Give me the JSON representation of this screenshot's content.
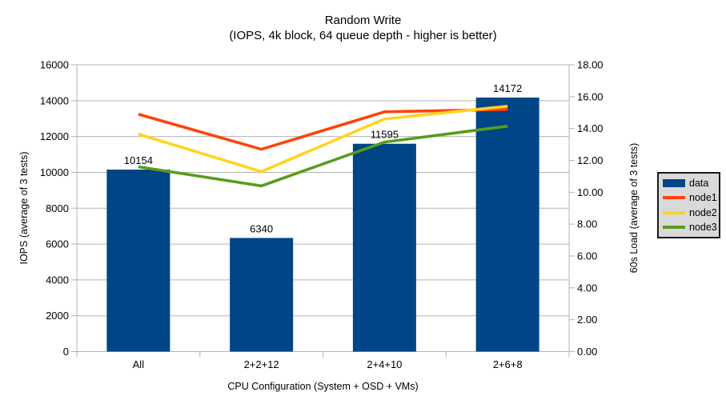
{
  "title": "Random Write",
  "subtitle": "(IOPS, 4k block, 64 queue depth - higher is better)",
  "chart_data": {
    "type": "bar+line",
    "categories": [
      "All",
      "2+2+12",
      "2+4+10",
      "2+6+8"
    ],
    "xlabel": "CPU Configuration (System + OSD + VMs)",
    "ylabel_left": "IOPS (average of 3 tests)",
    "ylabel_right": "60s Load (average of 3 tests)",
    "bar_series": {
      "name": "data",
      "axis": "left",
      "values": [
        10154,
        6340,
        11595,
        14172
      ],
      "value_labels": [
        "10154",
        "6340",
        "11595",
        "14172"
      ],
      "color": "#004586"
    },
    "line_series": [
      {
        "name": "node1",
        "axis": "right",
        "color": "#FF420E",
        "values": [
          14.9,
          12.7,
          15.05,
          15.2
        ]
      },
      {
        "name": "node2",
        "axis": "right",
        "color": "#FFD320",
        "values": [
          13.65,
          11.3,
          14.6,
          15.4
        ]
      },
      {
        "name": "node3",
        "axis": "right",
        "color": "#579D1C",
        "values": [
          11.6,
          10.4,
          13.15,
          14.15
        ]
      }
    ],
    "left_axis": {
      "min": 0,
      "max": 16000,
      "step": 2000,
      "tick_values": [
        0,
        2000,
        4000,
        6000,
        8000,
        10000,
        12000,
        14000,
        16000
      ],
      "tick_labels": [
        "0",
        "2000",
        "4000",
        "6000",
        "8000",
        "10000",
        "12000",
        "14000",
        "16000"
      ]
    },
    "right_axis": {
      "min": 0,
      "max": 18,
      "step": 2,
      "tick_values": [
        0,
        2,
        4,
        6,
        8,
        10,
        12,
        14,
        16,
        18
      ],
      "tick_labels": [
        "0.00",
        "2.00",
        "4.00",
        "6.00",
        "8.00",
        "10.00",
        "12.00",
        "14.00",
        "16.00",
        "18.00"
      ]
    },
    "grid": true,
    "legend_position": "right"
  },
  "legend": {
    "items": [
      {
        "label": "data",
        "swatch": "rect",
        "color": "#004586"
      },
      {
        "label": "node1",
        "swatch": "line",
        "color": "#FF420E"
      },
      {
        "label": "node2",
        "swatch": "line",
        "color": "#FFD320"
      },
      {
        "label": "node3",
        "swatch": "line",
        "color": "#579D1C"
      }
    ]
  },
  "colors": {
    "background": "#ffffff",
    "grid": "#b3b3b3",
    "axis": "#b3b3b3",
    "text": "#000000",
    "legend_bg": "#d9d9d9",
    "legend_border": "#1a1a1a"
  }
}
